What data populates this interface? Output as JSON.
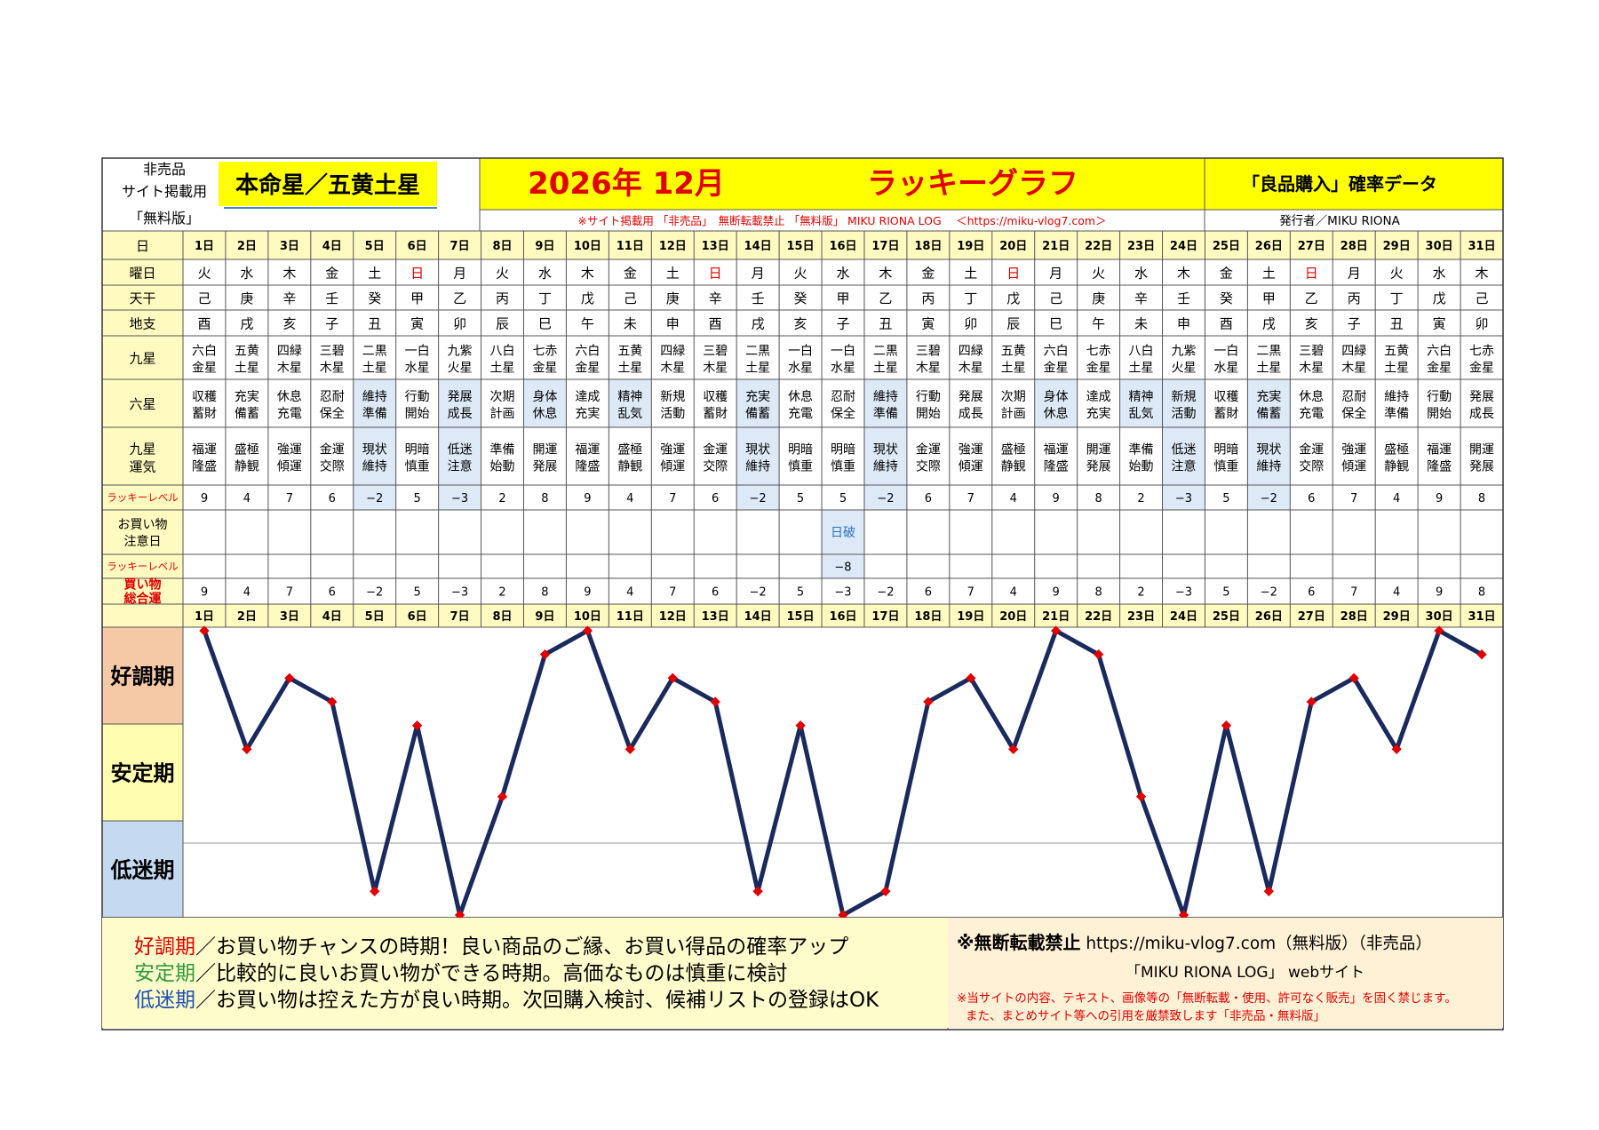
{
  "header": {
    "nonsale_line1": "非売品",
    "nonsale_line2": "サイト掲載用",
    "nonsale_line3": "「無料版」",
    "star": "本命星／五黄土星",
    "title_date": "2026年 12月",
    "title_graph": "ラッキーグラフ",
    "right_title": "「良品購入」確率データ",
    "notice_line": "※サイト掲載用 「非売品」　無断転載禁止 「無料版」 MIKU RIONA LOG 　＜https://miku-vlog7.com＞",
    "publisher": "発行者／MIKU RIONA"
  },
  "row_labels": {
    "day": "日",
    "weekday": "曜日",
    "tenkan": "天干",
    "chishi": "地支",
    "kyusei": "九星",
    "rokusei": "六星",
    "kyusei_unki_1": "九星",
    "kyusei_unki_2": "運気",
    "lucky_level": "ラッキーレベル",
    "caution_1": "お買い物",
    "caution_2": "注意日",
    "lucky_level2": "ラッキーレベル",
    "total_1": "買い物",
    "total_2": "総合運"
  },
  "days": [
    "1日",
    "2日",
    "3日",
    "4日",
    "5日",
    "6日",
    "7日",
    "8日",
    "9日",
    "10日",
    "11日",
    "12日",
    "13日",
    "14日",
    "15日",
    "16日",
    "17日",
    "18日",
    "19日",
    "20日",
    "21日",
    "22日",
    "23日",
    "24日",
    "25日",
    "26日",
    "27日",
    "28日",
    "29日",
    "30日",
    "31日"
  ],
  "weekdays": [
    "火",
    "水",
    "木",
    "金",
    "土",
    "日",
    "月",
    "火",
    "水",
    "木",
    "金",
    "土",
    "日",
    "月",
    "火",
    "水",
    "木",
    "金",
    "土",
    "日",
    "月",
    "火",
    "水",
    "木",
    "金",
    "土",
    "日",
    "月",
    "火",
    "水",
    "木"
  ],
  "tenkan": [
    "己",
    "庚",
    "辛",
    "壬",
    "癸",
    "甲",
    "乙",
    "丙",
    "丁",
    "戊",
    "己",
    "庚",
    "辛",
    "壬",
    "癸",
    "甲",
    "乙",
    "丙",
    "丁",
    "戊",
    "己",
    "庚",
    "辛",
    "壬",
    "癸",
    "甲",
    "乙",
    "丙",
    "丁",
    "戊",
    "己"
  ],
  "chishi": [
    "酉",
    "戌",
    "亥",
    "子",
    "丑",
    "寅",
    "卯",
    "辰",
    "巳",
    "午",
    "未",
    "申",
    "酉",
    "戌",
    "亥",
    "子",
    "丑",
    "寅",
    "卯",
    "辰",
    "巳",
    "午",
    "未",
    "申",
    "酉",
    "戌",
    "亥",
    "子",
    "丑",
    "寅",
    "卯"
  ],
  "kyusei": [
    [
      "六白",
      "金星"
    ],
    [
      "五黄",
      "土星"
    ],
    [
      "四緑",
      "木星"
    ],
    [
      "三碧",
      "木星"
    ],
    [
      "二黒",
      "土星"
    ],
    [
      "一白",
      "水星"
    ],
    [
      "九紫",
      "火星"
    ],
    [
      "八白",
      "土星"
    ],
    [
      "七赤",
      "金星"
    ],
    [
      "六白",
      "金星"
    ],
    [
      "五黄",
      "土星"
    ],
    [
      "四緑",
      "木星"
    ],
    [
      "三碧",
      "木星"
    ],
    [
      "二黒",
      "土星"
    ],
    [
      "一白",
      "水星"
    ],
    [
      "一白",
      "水星"
    ],
    [
      "二黒",
      "土星"
    ],
    [
      "三碧",
      "木星"
    ],
    [
      "四緑",
      "木星"
    ],
    [
      "五黄",
      "土星"
    ],
    [
      "六白",
      "金星"
    ],
    [
      "七赤",
      "金星"
    ],
    [
      "八白",
      "土星"
    ],
    [
      "九紫",
      "火星"
    ],
    [
      "一白",
      "水星"
    ],
    [
      "二黒",
      "土星"
    ],
    [
      "三碧",
      "木星"
    ],
    [
      "四緑",
      "木星"
    ],
    [
      "五黄",
      "土星"
    ],
    [
      "六白",
      "金星"
    ],
    [
      "七赤",
      "金星"
    ]
  ],
  "rokusei": [
    [
      "収穫",
      "蓄財"
    ],
    [
      "充実",
      "備蓄"
    ],
    [
      "休息",
      "充電"
    ],
    [
      "忍耐",
      "保全"
    ],
    [
      "維持",
      "準備"
    ],
    [
      "行動",
      "開始"
    ],
    [
      "発展",
      "成長"
    ],
    [
      "次期",
      "計画"
    ],
    [
      "身体",
      "休息"
    ],
    [
      "達成",
      "充実"
    ],
    [
      "精神",
      "乱気"
    ],
    [
      "新規",
      "活動"
    ],
    [
      "収穫",
      "蓄財"
    ],
    [
      "充実",
      "備蓄"
    ],
    [
      "休息",
      "充電"
    ],
    [
      "忍耐",
      "保全"
    ],
    [
      "維持",
      "準備"
    ],
    [
      "行動",
      "開始"
    ],
    [
      "発展",
      "成長"
    ],
    [
      "次期",
      "計画"
    ],
    [
      "身体",
      "休息"
    ],
    [
      "達成",
      "充実"
    ],
    [
      "精神",
      "乱気"
    ],
    [
      "新規",
      "活動"
    ],
    [
      "収穫",
      "蓄財"
    ],
    [
      "充実",
      "備蓄"
    ],
    [
      "休息",
      "充電"
    ],
    [
      "忍耐",
      "保全"
    ],
    [
      "維持",
      "準備"
    ],
    [
      "行動",
      "開始"
    ],
    [
      "発展",
      "成長"
    ]
  ],
  "unki": [
    [
      "福運",
      "隆盛"
    ],
    [
      "盛極",
      "静観"
    ],
    [
      "強運",
      "傾運"
    ],
    [
      "金運",
      "交際"
    ],
    [
      "現状",
      "維持"
    ],
    [
      "明暗",
      "慎重"
    ],
    [
      "低迷",
      "注意"
    ],
    [
      "準備",
      "始動"
    ],
    [
      "開運",
      "発展"
    ],
    [
      "福運",
      "隆盛"
    ],
    [
      "盛極",
      "静観"
    ],
    [
      "強運",
      "傾運"
    ],
    [
      "金運",
      "交際"
    ],
    [
      "現状",
      "維持"
    ],
    [
      "明暗",
      "慎重"
    ],
    [
      "明暗",
      "慎重"
    ],
    [
      "現状",
      "維持"
    ],
    [
      "金運",
      "交際"
    ],
    [
      "強運",
      "傾運"
    ],
    [
      "盛極",
      "静観"
    ],
    [
      "福運",
      "隆盛"
    ],
    [
      "開運",
      "発展"
    ],
    [
      "準備",
      "始動"
    ],
    [
      "低迷",
      "注意"
    ],
    [
      "明暗",
      "慎重"
    ],
    [
      "現状",
      "維持"
    ],
    [
      "金運",
      "交際"
    ],
    [
      "強運",
      "傾運"
    ],
    [
      "盛極",
      "静観"
    ],
    [
      "福運",
      "隆盛"
    ],
    [
      "開運",
      "発展"
    ]
  ],
  "lucky_level": [
    "9",
    "4",
    "7",
    "6",
    "−2",
    "5",
    "−3",
    "2",
    "8",
    "9",
    "4",
    "7",
    "6",
    "−2",
    "5",
    "5",
    "−2",
    "6",
    "7",
    "4",
    "9",
    "8",
    "2",
    "−3",
    "5",
    "−2",
    "6",
    "7",
    "4",
    "9",
    "8"
  ],
  "caution_days": [
    "",
    "",
    "",
    "",
    "",
    "",
    "",
    "",
    "",
    "",
    "",
    "",
    "",
    "",
    "",
    "日破",
    "",
    "",
    "",
    "",
    "",
    "",
    "",
    "",
    "",
    "",
    "",
    "",
    "",
    "",
    ""
  ],
  "lucky_level2": [
    "",
    "",
    "",
    "",
    "",
    "",
    "",
    "",
    "",
    "",
    "",
    "",
    "",
    "",
    "",
    "−8",
    "",
    "",
    "",
    "",
    "",
    "",
    "",
    "",
    "",
    "",
    "",
    "",
    "",
    "",
    ""
  ],
  "total": [
    "9",
    "4",
    "7",
    "6",
    "−2",
    "5",
    "−3",
    "2",
    "8",
    "9",
    "4",
    "7",
    "6",
    "−2",
    "5",
    "−3",
    "−2",
    "6",
    "7",
    "4",
    "9",
    "8",
    "2",
    "−3",
    "5",
    "−2",
    "6",
    "7",
    "4",
    "9",
    "8"
  ],
  "chart_data": {
    "type": "line",
    "x": [
      1,
      2,
      3,
      4,
      5,
      6,
      7,
      8,
      9,
      10,
      11,
      12,
      13,
      14,
      15,
      16,
      17,
      18,
      19,
      20,
      21,
      22,
      23,
      24,
      25,
      26,
      27,
      28,
      29,
      30,
      31
    ],
    "series": [
      {
        "values": [
          9,
          4,
          7,
          6,
          -2,
          5,
          -3,
          2,
          8,
          9,
          4,
          7,
          6,
          -2,
          5,
          -3,
          -2,
          6,
          7,
          4,
          9,
          8,
          2,
          -3,
          5,
          -2,
          6,
          7,
          4,
          9,
          8
        ]
      }
    ],
    "bands": [
      "好調期",
      "安定期",
      "低迷期"
    ],
    "ylim": [
      -3,
      9
    ],
    "line_color": "#1a2a5c",
    "marker_color": "#e00000",
    "band_colors": [
      "#f6c9a6",
      "#fffdb0",
      "#c5d9f0"
    ],
    "grid": false
  },
  "legend": {
    "good_term": "好調期",
    "good_text": "／お買い物チャンスの時期！良い商品のご縁、お買い得品の確率アップ",
    "stable_term": "安定期",
    "stable_text": "／比較的に良いお買い物ができる時期。高価なものは慎重に検討",
    "low_term": "低迷期",
    "low_text": "／お買い物は控えた方が良い時期。次回購入検討、候補リストの登録はOK"
  },
  "notice": {
    "line1_bold": "※無断転載禁止",
    "line1_rest": " https://miku-vlog7.com（無料版）（非売品）",
    "line2": "「MIKU RIONA LOG」 webサイト",
    "line3": "※当サイトの内容、テキスト、画像等の「無断転載・使用、許可なく販売」を固く禁じます。",
    "line4": "また、まとめサイト等への引用を厳禁致します「非売品・無料版」"
  },
  "colors": {
    "label_fill": "#fffbc0",
    "highlight_fill": "#dde9f6",
    "title_fill": "#ffff00",
    "red": "#e00000",
    "blue": "#2b6fc4",
    "grid": "#555555"
  }
}
